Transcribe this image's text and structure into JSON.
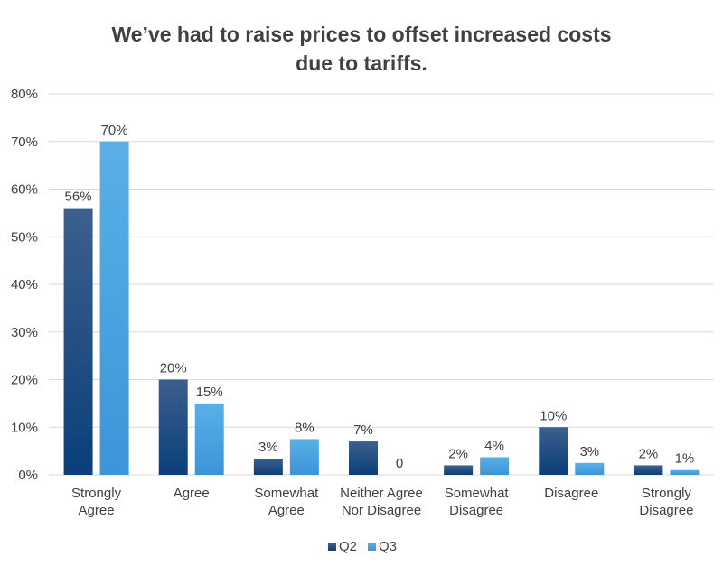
{
  "chart_data": {
    "type": "bar",
    "title": "We’ve had to raise prices to offset increased costs due to tariffs.",
    "categories": [
      [
        "Strongly",
        "Agree"
      ],
      [
        "Agree"
      ],
      [
        "Somewhat",
        "Agree"
      ],
      [
        "Neither Agree",
        "Nor Disagree"
      ],
      [
        "Somewhat",
        "Disagree"
      ],
      [
        "Disagree"
      ],
      [
        "Strongly",
        "Disagree"
      ]
    ],
    "series": [
      {
        "name": "Q2",
        "values": [
          56,
          20,
          3.4,
          7,
          2,
          10,
          2
        ],
        "labels": [
          "56%",
          "20%",
          "3%",
          "7%",
          "2%",
          "10%",
          "2%"
        ],
        "color_top": "#3c5f8e",
        "color_bottom": "#0a3f7a"
      },
      {
        "name": "Q3",
        "values": [
          70,
          15,
          7.5,
          0,
          3.7,
          2.5,
          1
        ],
        "labels": [
          "70%",
          "15%",
          "8%",
          "0",
          "4%",
          "3%",
          "1%"
        ],
        "color_top": "#5aafe6",
        "color_bottom": "#3c95d8"
      }
    ],
    "ylim": [
      0,
      80
    ],
    "yticks": [
      0,
      10,
      20,
      30,
      40,
      50,
      60,
      70,
      80
    ],
    "ytick_labels": [
      "0%",
      "10%",
      "20%",
      "30%",
      "40%",
      "50%",
      "60%",
      "70%",
      "80%"
    ],
    "xlabel": "",
    "ylabel": "",
    "grid": true,
    "legend_position": "bottom"
  }
}
